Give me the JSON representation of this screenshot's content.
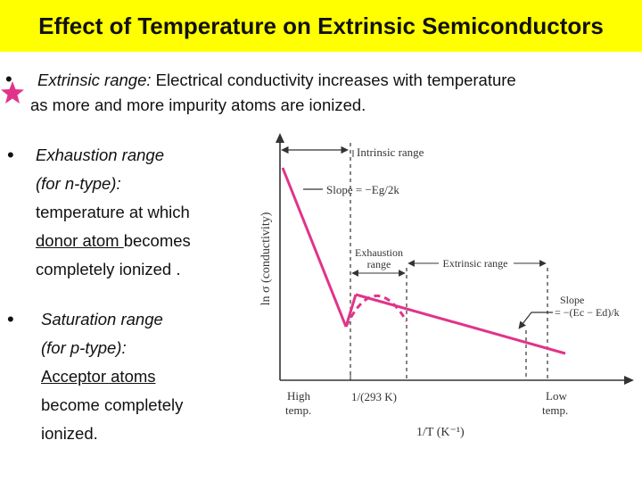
{
  "title": "Effect of Temperature on Extrinsic Semiconductors",
  "colors": {
    "title_bg": "#ffff00",
    "accent": "#e0348a",
    "curve": "#e0348a",
    "axis": "#333333"
  },
  "bullets": {
    "extrinsic": {
      "term": "Extrinsic range:",
      "text_line1": " Electrical conductivity increases with temperature",
      "text_line2": "as more and more impurity atoms are ionized."
    },
    "exhaustion": {
      "term_line1": "Exhaustion range",
      "term_line2": "(for n-type):",
      "line3": "temperature at which",
      "line4_underlined": "donor atom ",
      "line4_rest": "becomes",
      "line5": "completely ionized ."
    },
    "saturation": {
      "term_line1": "Saturation range",
      "term_line2": "(for p-type):",
      "line3_underlined": "Acceptor atoms",
      "line4": "become completely",
      "line5": "ionized."
    }
  },
  "star_icon": "star-icon",
  "figure": {
    "ylabel": "ln σ (conductivity)",
    "xlabel": "1/T (K⁻¹)",
    "intrinsic_range": "Intrinsic range",
    "slope_intrinsic": "Slope = −Eg/2k",
    "exhaustion_range_line1": "Exhaustion",
    "exhaustion_range_line2": "range",
    "extrinsic_range": "Extrinsic range",
    "slope_extrinsic_line1": "Slope",
    "slope_extrinsic_line2": "= −(Ec − Ed)/k",
    "high_temp_line1": "High",
    "high_temp_line2": "temp.",
    "marker_293": "1/(293 K)",
    "low_temp_line1": "Low",
    "low_temp_line2": "temp."
  }
}
